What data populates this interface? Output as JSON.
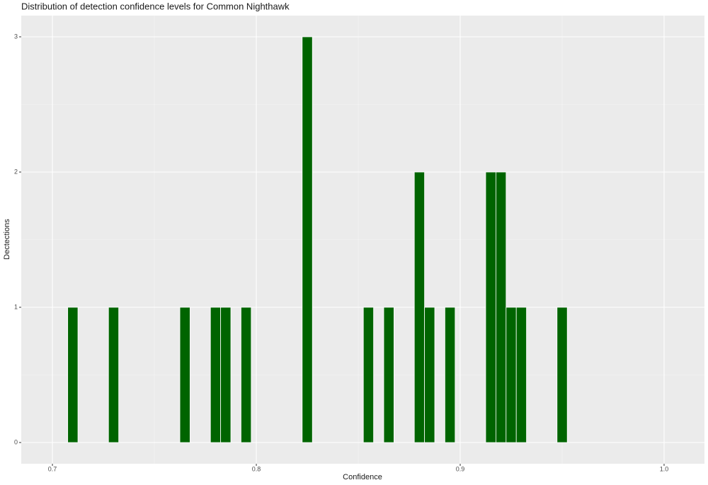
{
  "chart_data": {
    "type": "histogram",
    "title": "Distribution of detection confidence levels for Common Nighthawk",
    "x_label": "Confidence",
    "y_label": "Dectections",
    "bins": [
      0.7075,
      0.7125,
      0.7175,
      0.7225,
      0.7275,
      0.7325,
      0.7375,
      0.7425,
      0.7475,
      0.7525,
      0.7575,
      0.7625,
      0.7675,
      0.7725,
      0.7775,
      0.7825,
      0.7875,
      0.7925,
      0.7975,
      0.8025,
      0.8075,
      0.8125,
      0.8175,
      0.8225,
      0.8275,
      0.8325,
      0.8375,
      0.8425,
      0.8475,
      0.8525,
      0.8575,
      0.8625,
      0.8675,
      0.8725,
      0.8775,
      0.8825,
      0.8875,
      0.8925,
      0.8975,
      0.9025,
      0.9075,
      0.9125,
      0.9175,
      0.9225,
      0.9275,
      0.9325,
      0.9375,
      0.9425,
      0.9475,
      0.9525
    ],
    "values": [
      1,
      0,
      0,
      0,
      1,
      0,
      0,
      0,
      0,
      0,
      0,
      1,
      0,
      0,
      1,
      1,
      0,
      1,
      0,
      0,
      0,
      0,
      0,
      3,
      0,
      0,
      0,
      0,
      0,
      1,
      0,
      1,
      0,
      0,
      2,
      1,
      0,
      1,
      0,
      0,
      0,
      2,
      2,
      1,
      1,
      0,
      0,
      0,
      1
    ],
    "color": "#006400",
    "xlim": [
      0.6847,
      1.0198
    ],
    "ylim": [
      -0.157,
      3.157
    ],
    "xticks": [
      0.7,
      0.8,
      0.9,
      {
        "value": 1.0,
        "label": "1.0"
      }
    ],
    "yticks": [
      0,
      1,
      2,
      3
    ],
    "grid": true
  }
}
